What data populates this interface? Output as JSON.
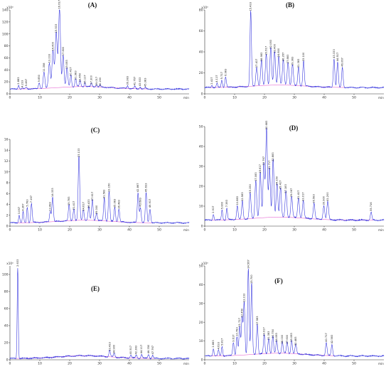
{
  "chart_data": [
    {
      "type": "line",
      "panel_label": "(A)",
      "y_unit": "x10³",
      "x_unit": "min",
      "xlim": [
        0,
        60
      ],
      "ylim": [
        0,
        140
      ],
      "x_ticks": [
        0,
        10,
        20,
        30,
        40,
        50
      ],
      "y_ticks": [
        0,
        20,
        40,
        60,
        80,
        100,
        120,
        140
      ],
      "baseline_level": 8,
      "peaks": [
        {
          "rt": 2.9,
          "h": 14,
          "w": 0.3,
          "label": "2.883"
        },
        {
          "rt": 4.2,
          "h": 9,
          "w": 0.3,
          "label": "4.233"
        },
        {
          "rt": 5.5,
          "h": 11,
          "w": 0.3,
          "label": "5.467"
        },
        {
          "rt": 9.8,
          "h": 18,
          "w": 0.35,
          "label": "9.850"
        },
        {
          "rt": 11.4,
          "h": 35,
          "w": 0.4,
          "label": "11.358"
        },
        {
          "rt": 13.2,
          "h": 50,
          "w": 0.45,
          "label": "13.233"
        },
        {
          "rt": 14.4,
          "h": 70,
          "w": 0.45,
          "label": "14.400"
        },
        {
          "rt": 15.5,
          "h": 100,
          "w": 0.5,
          "label": "15.533"
        },
        {
          "rt": 16.6,
          "h": 140,
          "w": 0.45,
          "label": "16.617"
        },
        {
          "rt": 17.8,
          "h": 62,
          "w": 0.4,
          "label": "17.800"
        },
        {
          "rt": 19.1,
          "h": 40,
          "w": 0.4,
          "label": "19.083"
        },
        {
          "rt": 20.4,
          "h": 28,
          "w": 0.35,
          "label": "20.417"
        },
        {
          "rt": 22.0,
          "h": 22,
          "w": 0.35,
          "label": "21.983"
        },
        {
          "rt": 23.5,
          "h": 18,
          "w": 0.35,
          "label": "23.450"
        },
        {
          "rt": 25.1,
          "h": 15,
          "w": 0.3,
          "label": "25.117"
        },
        {
          "rt": 27.3,
          "h": 14,
          "w": 0.3,
          "label": "27.300"
        },
        {
          "rt": 29.0,
          "h": 12,
          "w": 0.3,
          "label": "29.017"
        },
        {
          "rt": 30.2,
          "h": 11,
          "w": 0.3,
          "label": "30.200"
        },
        {
          "rt": 39.4,
          "h": 13,
          "w": 0.3,
          "label": "39.383"
        },
        {
          "rt": 41.8,
          "h": 12,
          "w": 0.3,
          "label": "41.767"
        },
        {
          "rt": 43.6,
          "h": 11,
          "w": 0.3,
          "label": "43.633"
        },
        {
          "rt": 45.4,
          "h": 10,
          "w": 0.3,
          "label": "45.383"
        }
      ]
    },
    {
      "type": "line",
      "panel_label": "(B)",
      "y_unit": "x10³",
      "x_unit": "min",
      "xlim": [
        0,
        60
      ],
      "ylim": [
        0,
        80
      ],
      "x_ticks": [
        0,
        10,
        20,
        30,
        40,
        50
      ],
      "y_ticks": [
        0,
        20,
        40,
        60,
        80
      ],
      "baseline_level": 6,
      "peaks": [
        {
          "rt": 2.4,
          "h": 8,
          "w": 0.3,
          "label": "2.417"
        },
        {
          "rt": 4.1,
          "h": 10,
          "w": 0.3,
          "label": "4.117"
        },
        {
          "rt": 5.7,
          "h": 13,
          "w": 0.3,
          "label": "5.717"
        },
        {
          "rt": 7.0,
          "h": 16,
          "w": 0.35,
          "label": "6.983"
        },
        {
          "rt": 15.4,
          "h": 78,
          "w": 0.35,
          "label": "15.433"
        },
        {
          "rt": 17.4,
          "h": 24,
          "w": 0.4,
          "label": "17.417"
        },
        {
          "rt": 19.0,
          "h": 30,
          "w": 0.4,
          "label": "18.983"
        },
        {
          "rt": 20.6,
          "h": 36,
          "w": 0.4,
          "label": "20.617"
        },
        {
          "rt": 22.1,
          "h": 42,
          "w": 0.4,
          "label": "22.083"
        },
        {
          "rt": 23.4,
          "h": 38,
          "w": 0.4,
          "label": "23.400"
        },
        {
          "rt": 24.8,
          "h": 34,
          "w": 0.4,
          "label": "24.800"
        },
        {
          "rt": 26.3,
          "h": 30,
          "w": 0.4,
          "label": "26.267"
        },
        {
          "rt": 27.9,
          "h": 28,
          "w": 0.4,
          "label": "27.883"
        },
        {
          "rt": 29.4,
          "h": 26,
          "w": 0.4,
          "label": "29.383"
        },
        {
          "rt": 31.4,
          "h": 24,
          "w": 0.35,
          "label": "31.383"
        },
        {
          "rt": 33.1,
          "h": 30,
          "w": 0.35,
          "label": "33.100"
        },
        {
          "rt": 43.3,
          "h": 33,
          "w": 0.35,
          "label": "43.333"
        },
        {
          "rt": 44.5,
          "h": 30,
          "w": 0.35,
          "label": "44.517"
        },
        {
          "rt": 46.1,
          "h": 25,
          "w": 0.35,
          "label": "46.067"
        }
      ]
    },
    {
      "type": "line",
      "panel_label": "(C)",
      "y_unit": "",
      "x_unit": "min",
      "xlim": [
        0,
        60
      ],
      "ylim": [
        0,
        16
      ],
      "x_ticks": [
        0,
        10,
        20,
        30,
        40,
        50
      ],
      "y_ticks": [
        0,
        2,
        4,
        6,
        8,
        10,
        12,
        14,
        16
      ],
      "baseline_level": 0.6,
      "peaks": [
        {
          "rt": 3.1,
          "h": 2.0,
          "w": 0.3,
          "label": "3.067"
        },
        {
          "rt": 4.4,
          "h": 2.6,
          "w": 0.3,
          "label": "4.367"
        },
        {
          "rt": 5.8,
          "h": 3.4,
          "w": 0.3,
          "label": "5.783"
        },
        {
          "rt": 7.2,
          "h": 4.1,
          "w": 0.35,
          "label": "7.167"
        },
        {
          "rt": 13.5,
          "h": 2.6,
          "w": 0.35,
          "label": "13.483"
        },
        {
          "rt": 14.3,
          "h": 5.2,
          "w": 0.35,
          "label": "14.333"
        },
        {
          "rt": 19.8,
          "h": 3.6,
          "w": 0.35,
          "label": "19.783"
        },
        {
          "rt": 21.4,
          "h": 2.8,
          "w": 0.35,
          "label": "21.417"
        },
        {
          "rt": 23.1,
          "h": 12.5,
          "w": 0.35,
          "label": "23.133"
        },
        {
          "rt": 24.6,
          "h": 2.6,
          "w": 0.35,
          "label": "24.617"
        },
        {
          "rt": 26.4,
          "h": 3.1,
          "w": 0.35,
          "label": "26.433"
        },
        {
          "rt": 27.6,
          "h": 4.5,
          "w": 0.35,
          "label": "27.617"
        },
        {
          "rt": 29.0,
          "h": 2.0,
          "w": 0.35,
          "label": "29.000"
        },
        {
          "rt": 31.6,
          "h": 4.9,
          "w": 0.35,
          "label": "31.583"
        },
        {
          "rt": 33.2,
          "h": 6.1,
          "w": 0.35,
          "label": "33.150"
        },
        {
          "rt": 35.1,
          "h": 3.2,
          "w": 0.35,
          "label": "35.083"
        },
        {
          "rt": 36.5,
          "h": 3.0,
          "w": 0.35,
          "label": "36.483"
        },
        {
          "rt": 42.9,
          "h": 6.1,
          "w": 0.35,
          "label": "42.867"
        },
        {
          "rt": 43.7,
          "h": 3.4,
          "w": 0.35,
          "label": "43.683"
        },
        {
          "rt": 45.6,
          "h": 6.1,
          "w": 0.35,
          "label": "45.633"
        },
        {
          "rt": 46.9,
          "h": 3.2,
          "w": 0.35,
          "label": "46.917"
        }
      ]
    },
    {
      "type": "line",
      "panel_label": "(D)",
      "y_unit": "",
      "x_unit": "min",
      "xlim": [
        0,
        60
      ],
      "ylim": [
        0,
        50
      ],
      "x_ticks": [
        0,
        10,
        20,
        30,
        40,
        50
      ],
      "y_ticks": [
        0,
        10,
        20,
        30,
        40,
        50
      ],
      "baseline_level": 3,
      "peaks": [
        {
          "rt": 2.9,
          "h": 6,
          "w": 0.3,
          "label": "2.917"
        },
        {
          "rt": 5.8,
          "h": 8,
          "w": 0.3,
          "label": "5.800"
        },
        {
          "rt": 7.4,
          "h": 9,
          "w": 0.3,
          "label": "7.383"
        },
        {
          "rt": 10.9,
          "h": 10,
          "w": 0.35,
          "label": "10.883"
        },
        {
          "rt": 12.6,
          "h": 12,
          "w": 0.35,
          "label": "12.583"
        },
        {
          "rt": 15.2,
          "h": 16,
          "w": 0.4,
          "label": "15.150"
        },
        {
          "rt": 17.1,
          "h": 22,
          "w": 0.4,
          "label": "17.083"
        },
        {
          "rt": 18.6,
          "h": 26,
          "w": 0.4,
          "label": "18.617"
        },
        {
          "rt": 19.8,
          "h": 30,
          "w": 0.4,
          "label": "19.767"
        },
        {
          "rt": 20.7,
          "h": 48,
          "w": 0.4,
          "label": "20.683"
        },
        {
          "rt": 21.7,
          "h": 28,
          "w": 0.4,
          "label": "21.717"
        },
        {
          "rt": 22.9,
          "h": 32,
          "w": 0.4,
          "label": "22.883"
        },
        {
          "rt": 24.2,
          "h": 20,
          "w": 0.4,
          "label": "24.150"
        },
        {
          "rt": 25.4,
          "h": 18,
          "w": 0.4,
          "label": "25.417"
        },
        {
          "rt": 27.2,
          "h": 16,
          "w": 0.4,
          "label": "27.183"
        },
        {
          "rt": 29.1,
          "h": 14,
          "w": 0.4,
          "label": "29.067"
        },
        {
          "rt": 31.4,
          "h": 13,
          "w": 0.4,
          "label": "31.417"
        },
        {
          "rt": 33.0,
          "h": 12,
          "w": 0.4,
          "label": "33.017"
        },
        {
          "rt": 36.6,
          "h": 11,
          "w": 0.4,
          "label": "36.583"
        },
        {
          "rt": 39.9,
          "h": 10,
          "w": 0.4,
          "label": "39.900"
        },
        {
          "rt": 41.2,
          "h": 12,
          "w": 0.4,
          "label": "41.200"
        },
        {
          "rt": 55.7,
          "h": 7,
          "w": 0.35,
          "label": "55.716"
        }
      ]
    },
    {
      "type": "line",
      "panel_label": "(E)",
      "y_unit": "x10³",
      "x_unit": "min",
      "xlim": [
        0,
        60
      ],
      "ylim": [
        0,
        110
      ],
      "x_ticks": [
        0,
        10,
        20,
        30,
        40,
        50
      ],
      "y_ticks": [
        0,
        20,
        40,
        60,
        80,
        100
      ],
      "baseline_level": 1.5,
      "peaks": [
        {
          "rt": 2.6,
          "h": 108,
          "w": 0.25,
          "label": "2.633"
        },
        {
          "rt": 33.4,
          "h": 9,
          "w": 0.35,
          "label": "33.433"
        },
        {
          "rt": 34.9,
          "h": 6,
          "w": 0.35,
          "label": "34.900"
        },
        {
          "rt": 40.5,
          "h": 5,
          "w": 0.35,
          "label": "40.517"
        },
        {
          "rt": 42.3,
          "h": 5,
          "w": 0.35,
          "label": "42.283"
        },
        {
          "rt": 44.1,
          "h": 6,
          "w": 0.35,
          "label": "44.117"
        },
        {
          "rt": 46.4,
          "h": 6,
          "w": 0.35,
          "label": "46.350"
        },
        {
          "rt": 47.8,
          "h": 5,
          "w": 0.35,
          "label": "47.767"
        }
      ]
    },
    {
      "type": "line",
      "panel_label": "(F)",
      "y_unit": "x10³",
      "x_unit": "min",
      "xlim": [
        0,
        60
      ],
      "ylim": [
        0,
        50
      ],
      "x_ticks": [
        0,
        10,
        20,
        30,
        40,
        50
      ],
      "y_ticks": [
        0,
        10,
        20,
        30,
        40,
        50
      ],
      "baseline_level": 2,
      "peaks": [
        {
          "rt": 2.9,
          "h": 6,
          "w": 0.3,
          "label": "2.883"
        },
        {
          "rt": 4.6,
          "h": 5,
          "w": 0.3,
          "label": "4.633"
        },
        {
          "rt": 5.8,
          "h": 7,
          "w": 0.3,
          "label": "5.817"
        },
        {
          "rt": 9.6,
          "h": 9,
          "w": 0.35,
          "label": "9.617"
        },
        {
          "rt": 10.8,
          "h": 12,
          "w": 0.35,
          "label": "10.783"
        },
        {
          "rt": 11.7,
          "h": 17,
          "w": 0.35,
          "label": "11.717"
        },
        {
          "rt": 12.5,
          "h": 22,
          "w": 0.35,
          "label": "12.450"
        },
        {
          "rt": 13.2,
          "h": 30,
          "w": 0.35,
          "label": "13.233"
        },
        {
          "rt": 14.6,
          "h": 48,
          "w": 0.35,
          "label": "14.567"
        },
        {
          "rt": 15.7,
          "h": 40,
          "w": 0.35,
          "label": "15.700"
        },
        {
          "rt": 17.6,
          "h": 18,
          "w": 0.35,
          "label": "17.583"
        },
        {
          "rt": 19.9,
          "h": 12,
          "w": 0.35,
          "label": "19.917"
        },
        {
          "rt": 21.4,
          "h": 10,
          "w": 0.35,
          "label": "21.383"
        },
        {
          "rt": 22.8,
          "h": 11,
          "w": 0.35,
          "label": "22.750"
        },
        {
          "rt": 24.1,
          "h": 9,
          "w": 0.35,
          "label": "24.083"
        },
        {
          "rt": 26.0,
          "h": 8,
          "w": 0.35,
          "label": "26.000"
        },
        {
          "rt": 27.6,
          "h": 8,
          "w": 0.35,
          "label": "27.600"
        },
        {
          "rt": 29.1,
          "h": 9,
          "w": 0.35,
          "label": "29.083"
        },
        {
          "rt": 30.5,
          "h": 7,
          "w": 0.35,
          "label": "30.483"
        },
        {
          "rt": 40.7,
          "h": 9,
          "w": 0.35,
          "label": "40.717"
        },
        {
          "rt": 42.6,
          "h": 8,
          "w": 0.35,
          "label": "42.583"
        }
      ]
    }
  ],
  "colors": {
    "trace": "#2b2bdc",
    "baseline_fill": "#e040c8",
    "axis": "#333333",
    "background": "#ffffff"
  }
}
